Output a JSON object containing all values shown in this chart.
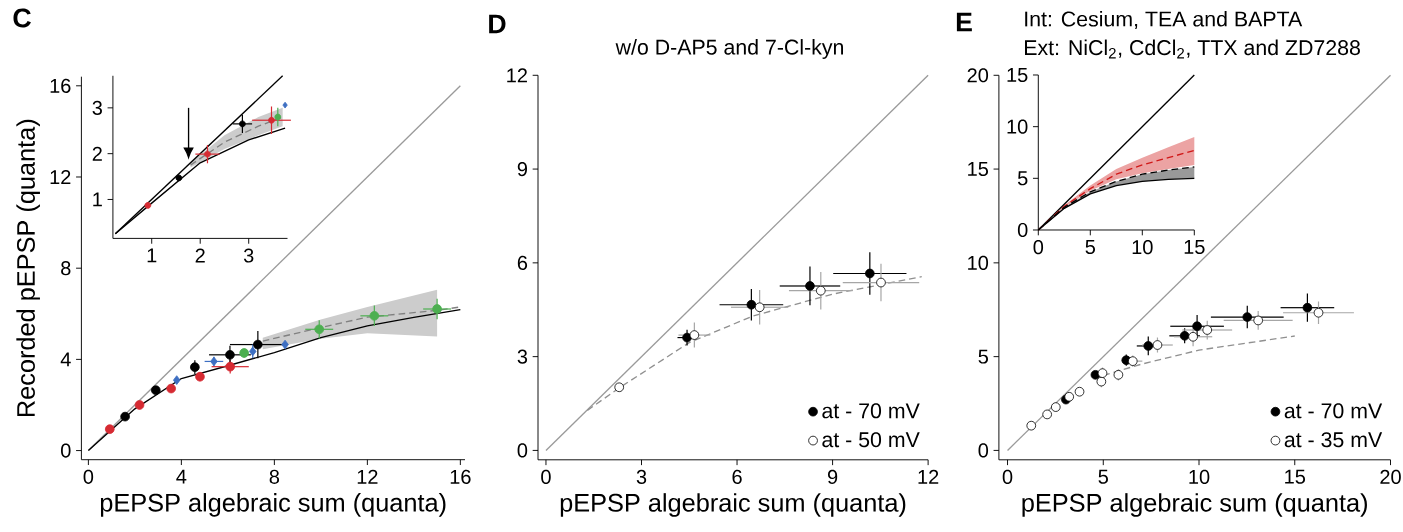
{
  "chart_data": [
    {
      "type": "scatter",
      "title": "C",
      "xlabel": "pEPSP algebraic sum (quanta)",
      "ylabel": "Recorded pEPSP (quanta)",
      "xlim": [
        -0.3,
        16.2
      ],
      "ylim": [
        -0.4,
        16.4
      ],
      "xticks": [
        0,
        4,
        8,
        12,
        16
      ],
      "yticks": [
        0,
        4,
        8,
        12,
        16
      ],
      "series": [
        {
          "type": "line",
          "color": "#9a9a9a",
          "x": [
            0,
            16
          ],
          "values": [
            0,
            16
          ]
        },
        {
          "type": "line",
          "color": "#000000",
          "x": [
            0,
            2,
            4,
            6,
            8,
            10,
            12,
            14,
            16
          ],
          "values": [
            0,
            1.83,
            3.16,
            3.72,
            4.3,
            4.95,
            5.47,
            5.84,
            6.18
          ]
        },
        {
          "type": "line",
          "color": "#808080",
          "line_style": "dashed",
          "x": [
            7.5,
            10,
            12,
            15,
            16
          ],
          "values": [
            4.8,
            5.4,
            5.85,
            6.15,
            6.3
          ],
          "lower": [
            4.45,
            4.9,
            5.15,
            5.0,
            null
          ],
          "upper": [
            4.95,
            5.75,
            6.3,
            7.05,
            null
          ]
        },
        {
          "color": "#d62a32",
          "marker": "circle",
          "x": [
            0.92,
            2.2,
            3.56,
            4.8,
            6.1
          ],
          "values": [
            0.94,
            2.0,
            2.72,
            3.24,
            3.68
          ],
          "errors": [
            null,
            null,
            null,
            0.2,
            0.3
          ],
          "xerrors": [
            null,
            null,
            null,
            null,
            0.8
          ]
        },
        {
          "color": "#000000",
          "marker": "circle",
          "x": [
            1.58,
            2.9,
            4.58,
            6.09,
            7.29
          ],
          "values": [
            1.49,
            2.65,
            3.66,
            4.2,
            4.65
          ],
          "errors": [
            null,
            null,
            0.3,
            0.4,
            0.6
          ],
          "xerrors": [
            null,
            null,
            null,
            0.9,
            1.2
          ]
        },
        {
          "color": "#3d6fc2",
          "marker": "diamond",
          "x": [
            3.8,
            5.4,
            7.07,
            8.46
          ],
          "values": [
            3.09,
            3.91,
            4.35,
            4.65
          ],
          "errors": [
            null,
            0.2,
            0.3,
            null
          ],
          "xerrors": [
            null,
            0.4,
            null,
            null
          ]
        },
        {
          "color": "#4caf50",
          "marker": "circle",
          "x": [
            6.7,
            9.93,
            12.3,
            15.0
          ],
          "values": [
            4.28,
            5.32,
            5.91,
            6.21
          ],
          "errors": [
            0.2,
            0.4,
            0.45,
            0.45
          ],
          "xerrors": [
            null,
            0.6,
            0.6,
            0.6
          ]
        }
      ]
    },
    {
      "type": "scatter",
      "xlim": [
        0.2,
        3.8
      ],
      "ylim": [
        0.15,
        3.7
      ],
      "xticks": [
        1,
        2,
        3
      ],
      "yticks": [
        1,
        2,
        3
      ],
      "series": [
        {
          "type": "line",
          "color": "#000000",
          "x": [
            0.25,
            3.7
          ],
          "values": [
            0.25,
            3.7
          ]
        },
        {
          "type": "line",
          "color": "#000000",
          "x": [
            0.25,
            1,
            2,
            3,
            3.75
          ],
          "values": [
            0.25,
            0.92,
            1.8,
            2.3,
            2.56
          ]
        },
        {
          "type": "line",
          "color": "#808080",
          "line_style": "dashed",
          "x": [
            1.8,
            2.5,
            3.2,
            3.7
          ],
          "values": [
            1.75,
            2.25,
            2.6,
            2.8
          ],
          "lower": [
            1.7,
            2.1,
            2.4,
            2.6
          ],
          "upper": [
            1.8,
            2.4,
            2.8,
            3.0
          ]
        },
        {
          "color": "#d62a32",
          "marker": "circle",
          "x": [
            0.92,
            2.15,
            3.47
          ],
          "values": [
            0.87,
            1.99,
            2.73
          ],
          "errors": [
            null,
            0.2,
            0.3
          ],
          "xerrors": [
            null,
            0.25,
            0.4
          ]
        },
        {
          "color": "#000000",
          "marker": "circle",
          "x": [
            1.56,
            2.87
          ],
          "values": [
            1.47,
            2.65
          ],
          "errors": [
            null,
            0.2
          ],
          "xerrors": [
            null,
            0.2
          ]
        },
        {
          "color": "#3d6fc2",
          "marker": "diamond",
          "x": [
            3.75
          ],
          "values": [
            3.06
          ]
        },
        {
          "color": "#4caf50",
          "marker": "circle",
          "x": [
            3.6
          ],
          "values": [
            2.8
          ],
          "errors": [
            0.2
          ]
        }
      ]
    },
    {
      "type": "scatter",
      "title": "D",
      "subtitle": "w/o D-AP5 and 7-Cl-kyn",
      "xlabel": "pEPSP algebraic sum (quanta)",
      "xlim": [
        -0.25,
        12
      ],
      "ylim": [
        -0.3,
        12
      ],
      "xticks": [
        0,
        3,
        6,
        9,
        12
      ],
      "yticks": [
        0,
        3,
        6,
        9,
        12
      ],
      "legend": "bottom right",
      "series": [
        {
          "type": "line",
          "color": "#9a9a9a",
          "x": [
            0,
            12
          ],
          "values": [
            0,
            12
          ]
        },
        {
          "type": "line",
          "color": "#909090",
          "line_style": "dashed",
          "x": [
            1.3,
            2.3,
            4.5,
            6.5,
            9,
            11.8
          ],
          "values": [
            1.28,
            2.0,
            3.45,
            4.3,
            5.0,
            5.56
          ]
        },
        {
          "name": "at - 70 mV",
          "color": "#000000",
          "marker": "circle",
          "x": [
            4.43,
            6.45,
            8.29,
            10.17
          ],
          "values": [
            3.61,
            4.66,
            5.26,
            5.66
          ],
          "errors": [
            0.25,
            0.5,
            0.62,
            0.68
          ],
          "xerrors": [
            0.3,
            1.0,
            0.95,
            1.15
          ]
        },
        {
          "name": "at - 50 mV",
          "color": "#ffffff",
          "marker": "circle",
          "x": [
            2.3,
            4.66,
            6.71,
            8.63,
            10.52
          ],
          "values": [
            2.02,
            3.69,
            4.58,
            5.11,
            5.37
          ],
          "errors": [
            null,
            0.4,
            0.55,
            0.6,
            0.6
          ],
          "xerrors": [
            null,
            0.5,
            0.9,
            1.0,
            1.2
          ]
        }
      ]
    },
    {
      "type": "scatter",
      "title": "E",
      "subtitle": "Int: Cesium, TEA and BAPTA",
      "annotations": [
        "Ext: NiCl$_{2}$, CdCl$_{2}$, TTX and ZD7288"
      ],
      "xlabel": "pEPSP algebraic sum (quanta)",
      "xlim": [
        -0.45,
        20
      ],
      "ylim": [
        -0.5,
        20
      ],
      "xticks": [
        0,
        5,
        10,
        15,
        20
      ],
      "yticks": [
        0,
        5,
        10,
        15,
        20
      ],
      "legend": "bottom right",
      "series": [
        {
          "type": "line",
          "color": "#9a9a9a",
          "x": [
            0,
            20
          ],
          "values": [
            0,
            20
          ]
        },
        {
          "type": "line",
          "color": "#909090",
          "line_style": "dashed",
          "x": [
            5,
            7,
            10,
            15
          ],
          "values": [
            4.0,
            4.6,
            5.35,
            6.1
          ]
        },
        {
          "name": "at - 70 mV",
          "color": "#000000",
          "marker": "circle",
          "x": [
            3.05,
            4.59,
            6.2,
            7.35,
            9.25,
            9.9,
            12.52,
            15.66
          ],
          "values": [
            2.71,
            4.03,
            4.81,
            5.57,
            6.11,
            6.62,
            7.11,
            7.61
          ],
          "errors": [
            null,
            0.2,
            0.3,
            0.5,
            0.4,
            0.6,
            0.6,
            0.75
          ],
          "xerrors": [
            null,
            null,
            null,
            0.6,
            0.8,
            1.4,
            1.9,
            1.4
          ]
        },
        {
          "name": "at - 35 mV",
          "color": "#ffffff",
          "marker": "circle",
          "x": [
            1.24,
            2.07,
            2.52,
            3.22,
            3.76,
            4.9,
            4.96,
            5.79,
            6.54,
            7.83,
            9.69,
            10.43,
            13.09,
            16.24
          ],
          "values": [
            1.32,
            1.92,
            2.31,
            2.86,
            3.13,
            3.67,
            4.12,
            4.03,
            4.76,
            5.62,
            6.06,
            6.42,
            6.93,
            7.34
          ],
          "errors": [
            null,
            null,
            null,
            null,
            null,
            0.3,
            0.3,
            0.3,
            0.3,
            0.4,
            0.5,
            0.5,
            0.5,
            0.6
          ],
          "xerrors": [
            null,
            null,
            null,
            null,
            null,
            null,
            null,
            null,
            0.5,
            0.8,
            1.0,
            1.3,
            1.8,
            1.85
          ]
        }
      ]
    },
    {
      "type": "line",
      "xlim": [
        0,
        15
      ],
      "ylim": [
        0,
        15
      ],
      "xticks": [
        0,
        5,
        10,
        15
      ],
      "yticks": [
        0,
        5,
        10,
        15
      ],
      "series": [
        {
          "color": "#000000",
          "x": [
            0,
            15
          ],
          "values": [
            0,
            15
          ]
        },
        {
          "color": "#d01818",
          "line_style": "dashed",
          "x": [
            0,
            2.5,
            5,
            7.5,
            10,
            12.5,
            15
          ],
          "values": [
            0,
            2.3,
            4.0,
            5.4,
            6.3,
            7.0,
            7.7
          ],
          "lower": [
            0,
            2.2,
            3.8,
            4.9,
            5.5,
            5.9,
            6.3
          ],
          "upper": [
            0,
            2.4,
            4.3,
            5.9,
            7.0,
            8.0,
            9.0
          ]
        },
        {
          "color": "#000000",
          "line_style": "dashed",
          "x": [
            0,
            2.5,
            5,
            7.5,
            10,
            12.5,
            15
          ],
          "values": [
            0,
            2.2,
            3.7,
            4.7,
            5.4,
            5.8,
            6.1
          ],
          "lower": [
            0,
            2.1,
            3.5,
            4.3,
            4.7,
            4.9,
            5.0
          ],
          "upper": [
            0,
            2.2,
            3.7,
            4.7,
            5.4,
            5.8,
            6.1
          ]
        },
        {
          "color": "#000000",
          "x": [
            0,
            2.5,
            5,
            7.5,
            10,
            12.5,
            15
          ],
          "values": [
            0,
            2.1,
            3.5,
            4.3,
            4.7,
            4.9,
            5.0
          ]
        }
      ]
    }
  ]
}
